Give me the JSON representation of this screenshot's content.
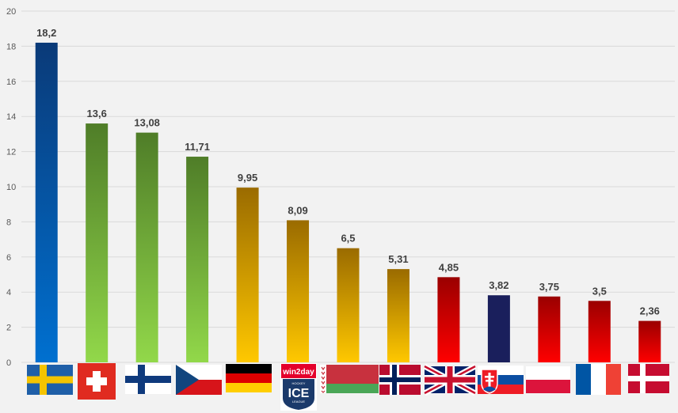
{
  "chart_data": {
    "type": "bar",
    "categories": [
      "Sweden",
      "Switzerland",
      "Finland",
      "Czechia",
      "Germany",
      "ICE Hockey League",
      "Belarus",
      "Norway",
      "United Kingdom",
      "Slovakia",
      "Poland",
      "France",
      "Denmark"
    ],
    "values": [
      18.2,
      13.6,
      13.08,
      11.71,
      9.95,
      8.09,
      6.5,
      5.31,
      4.85,
      3.82,
      3.75,
      3.5,
      2.36
    ],
    "value_labels": [
      "18,2",
      "13,6",
      "13,08",
      "11,71",
      "9,95",
      "8,09",
      "6,5",
      "5,31",
      "4,85",
      "3,82",
      "3,75",
      "3,5",
      "2,36"
    ],
    "yticks": [
      0,
      2,
      4,
      6,
      8,
      10,
      12,
      14,
      16,
      18,
      20
    ],
    "ylim": [
      0,
      20
    ],
    "grid": true,
    "title": "",
    "xlabel": "",
    "ylabel": "",
    "bar_colors": [
      [
        "#0a3a78",
        "#0070d0"
      ],
      [
        "#4f7d28",
        "#92d84a"
      ],
      [
        "#4f7d28",
        "#92d84a"
      ],
      [
        "#4f7d28",
        "#92d84a"
      ],
      [
        "#9a6b00",
        "#ffc800"
      ],
      [
        "#9a6b00",
        "#ffc800"
      ],
      [
        "#9a6b00",
        "#ffc800"
      ],
      [
        "#9a6b00",
        "#ffc800"
      ],
      [
        "#9a0000",
        "#ff0000"
      ],
      [
        "#1a1f5c",
        "#1a1f5c"
      ],
      [
        "#9a0000",
        "#ff0000"
      ],
      [
        "#9a0000",
        "#ff0000"
      ],
      [
        "#9a0000",
        "#ff0000"
      ]
    ],
    "x_axis_icons": [
      "sweden-flag-icon",
      "switzerland-flag-icon",
      "finland-flag-icon",
      "czechia-flag-icon",
      "germany-flag-icon",
      "ice-hockey-league-logo-icon",
      "belarus-flag-icon",
      "norway-flag-icon",
      "uk-flag-icon",
      "slovakia-flag-icon",
      "poland-flag-icon",
      "france-flag-icon",
      "denmark-flag-icon"
    ],
    "logo_text": [
      "win2day",
      "ICE",
      "HOCKEY",
      "LEAGUE"
    ]
  }
}
